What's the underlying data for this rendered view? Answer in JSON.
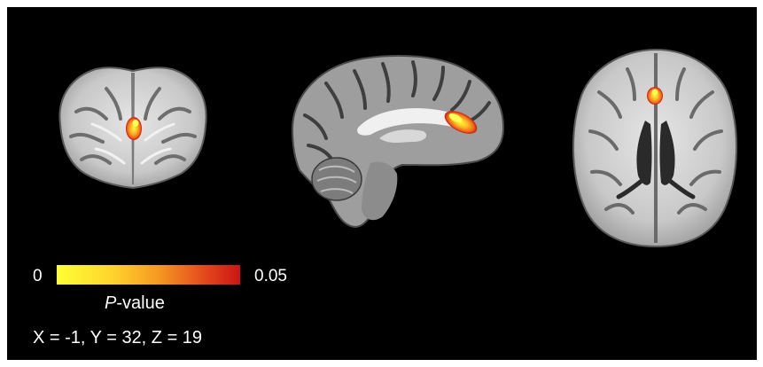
{
  "figure": {
    "background_color": "#000000",
    "views": [
      {
        "name": "coronal slice"
      },
      {
        "name": "sagittal slice"
      },
      {
        "name": "axial slice"
      }
    ],
    "overlay_colors": [
      "#ffff33",
      "#ffb62a",
      "#ef6a16",
      "#cc1414"
    ]
  },
  "colorbar": {
    "min_label": "0",
    "max_label": "0.05",
    "title_italic": "P",
    "title_rest": "-value",
    "colors": [
      "#ffff33",
      "#ffd42e",
      "#f59a22",
      "#e44b1c",
      "#cc1414"
    ]
  },
  "coordinates": "X = -1, Y = 32, Z = 19"
}
